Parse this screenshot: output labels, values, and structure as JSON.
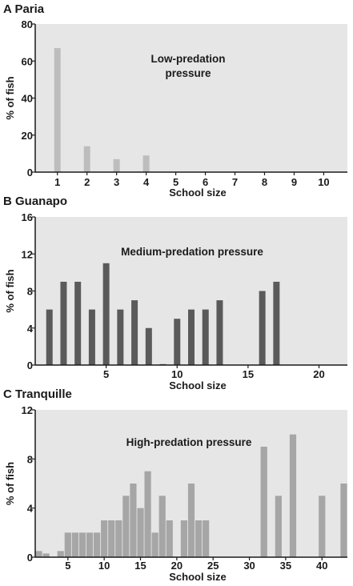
{
  "chart_data": [
    {
      "type": "bar",
      "panel_letter": "A",
      "title": "Paria",
      "annotation": [
        "Low-predation",
        "pressure"
      ],
      "xlabel": "School size",
      "ylabel": "% of fish",
      "x": [
        1,
        2,
        3,
        4,
        5,
        6,
        7,
        8,
        9,
        10
      ],
      "values": [
        67,
        14,
        7,
        9,
        0,
        0,
        0,
        0,
        0,
        0
      ],
      "xticks": [
        1,
        2,
        3,
        4,
        5,
        6,
        7,
        8,
        9,
        10
      ],
      "yticks": [
        0,
        20,
        40,
        60,
        80
      ],
      "xlim": [
        0.25,
        10.8
      ],
      "ylim": [
        0,
        80
      ],
      "grid": false,
      "background": "#e6e6e6",
      "bar_color": "#bdbdbd"
    },
    {
      "type": "bar",
      "panel_letter": "B",
      "title": "Guanapo",
      "annotation": [
        "Medium-predation pressure"
      ],
      "xlabel": "School size",
      "ylabel": "% of fish",
      "x": [
        1,
        2,
        3,
        4,
        5,
        6,
        7,
        8,
        9,
        10,
        11,
        12,
        13,
        16,
        17
      ],
      "values": [
        6,
        9,
        9,
        6,
        11,
        6,
        7,
        4,
        0.1,
        5,
        6,
        6,
        7,
        8,
        9
      ],
      "xticks": [
        5,
        10,
        15,
        20
      ],
      "yticks": [
        0,
        4,
        8,
        12,
        16
      ],
      "xlim": [
        0,
        22
      ],
      "ylim": [
        0,
        16
      ],
      "grid": false,
      "background": "#e6e6e6",
      "bar_color": "#5a5a5a"
    },
    {
      "type": "bar",
      "panel_letter": "C",
      "title": "Tranquille",
      "annotation": [
        "High-predation pressure"
      ],
      "xlabel": "School size",
      "ylabel": "% of fish",
      "x": [
        1,
        2,
        4,
        5,
        6,
        7,
        8,
        9,
        10,
        11,
        12,
        13,
        14,
        15,
        16,
        17,
        18,
        19,
        21,
        22,
        23,
        24,
        32,
        34,
        36,
        40,
        43
      ],
      "values": [
        0.5,
        0.3,
        0.5,
        2,
        2,
        2,
        2,
        2,
        3,
        3,
        3,
        5,
        6,
        4,
        7,
        2,
        5,
        3,
        3,
        6,
        3,
        3,
        9,
        5,
        10,
        5,
        6
      ],
      "xticks": [
        5,
        10,
        15,
        20,
        25,
        30,
        35,
        40
      ],
      "yticks": [
        0,
        4,
        8,
        12
      ],
      "xlim": [
        0.5,
        43.5
      ],
      "ylim": [
        0,
        12
      ],
      "grid": false,
      "background": "#e6e6e6",
      "bar_color": "#a6a6a6"
    }
  ]
}
